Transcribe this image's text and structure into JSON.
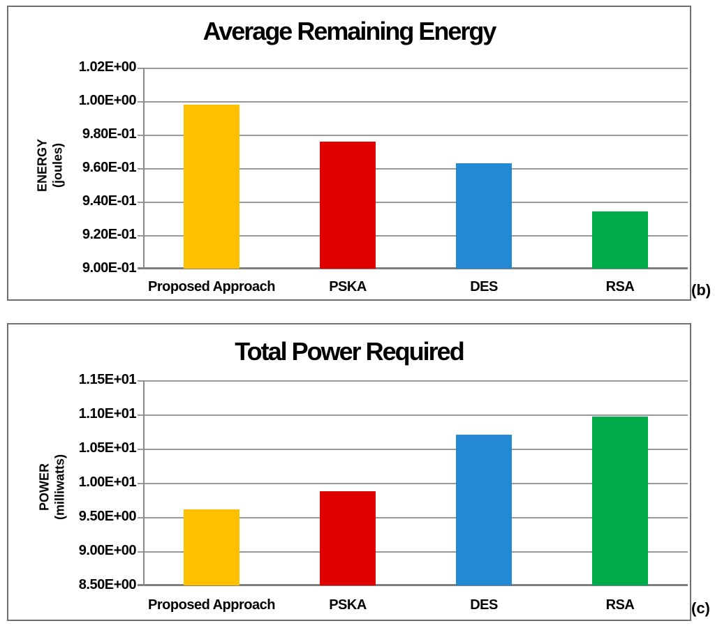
{
  "figure": {
    "panel_tags": [
      "(b)",
      "(c)"
    ]
  },
  "chart_data": [
    {
      "type": "bar",
      "title": "Average Remaining Energy",
      "ylabel_line1": "ENERGY",
      "ylabel_line2": "(joules)",
      "xlabel": "",
      "categories": [
        "Proposed Approach",
        "PSKA",
        "DES",
        "RSA"
      ],
      "values": [
        0.998,
        0.976,
        0.963,
        0.934
      ],
      "bar_colors": [
        "#FFC000",
        "#E00000",
        "#2389D4",
        "#00AC4A"
      ],
      "ylim": [
        0.9,
        1.02
      ],
      "yticks_top_to_bottom": [
        "1.02E+00",
        "1.00E+00",
        "9.80E-01",
        "9.60E-01",
        "9.40E-01",
        "9.20E-01",
        "9.00E-01"
      ],
      "grid": true,
      "legend": "none",
      "panel_tag": "(b)"
    },
    {
      "type": "bar",
      "title": "Total Power Required",
      "ylabel_line1": "POWER",
      "ylabel_line2": "(milliwatts)",
      "xlabel": "",
      "categories": [
        "Proposed Approach",
        "PSKA",
        "DES",
        "RSA"
      ],
      "values": [
        9.61,
        9.88,
        10.7,
        10.97
      ],
      "bar_colors": [
        "#FFC000",
        "#E00000",
        "#2389D4",
        "#00AC4A"
      ],
      "ylim": [
        8.5,
        11.5
      ],
      "yticks_top_to_bottom": [
        "1.15E+01",
        "1.10E+01",
        "1.05E+01",
        "1.00E+01",
        "9.50E+00",
        "9.00E+00",
        "8.50E+00"
      ],
      "grid": true,
      "legend": "none",
      "panel_tag": "(c)"
    }
  ]
}
